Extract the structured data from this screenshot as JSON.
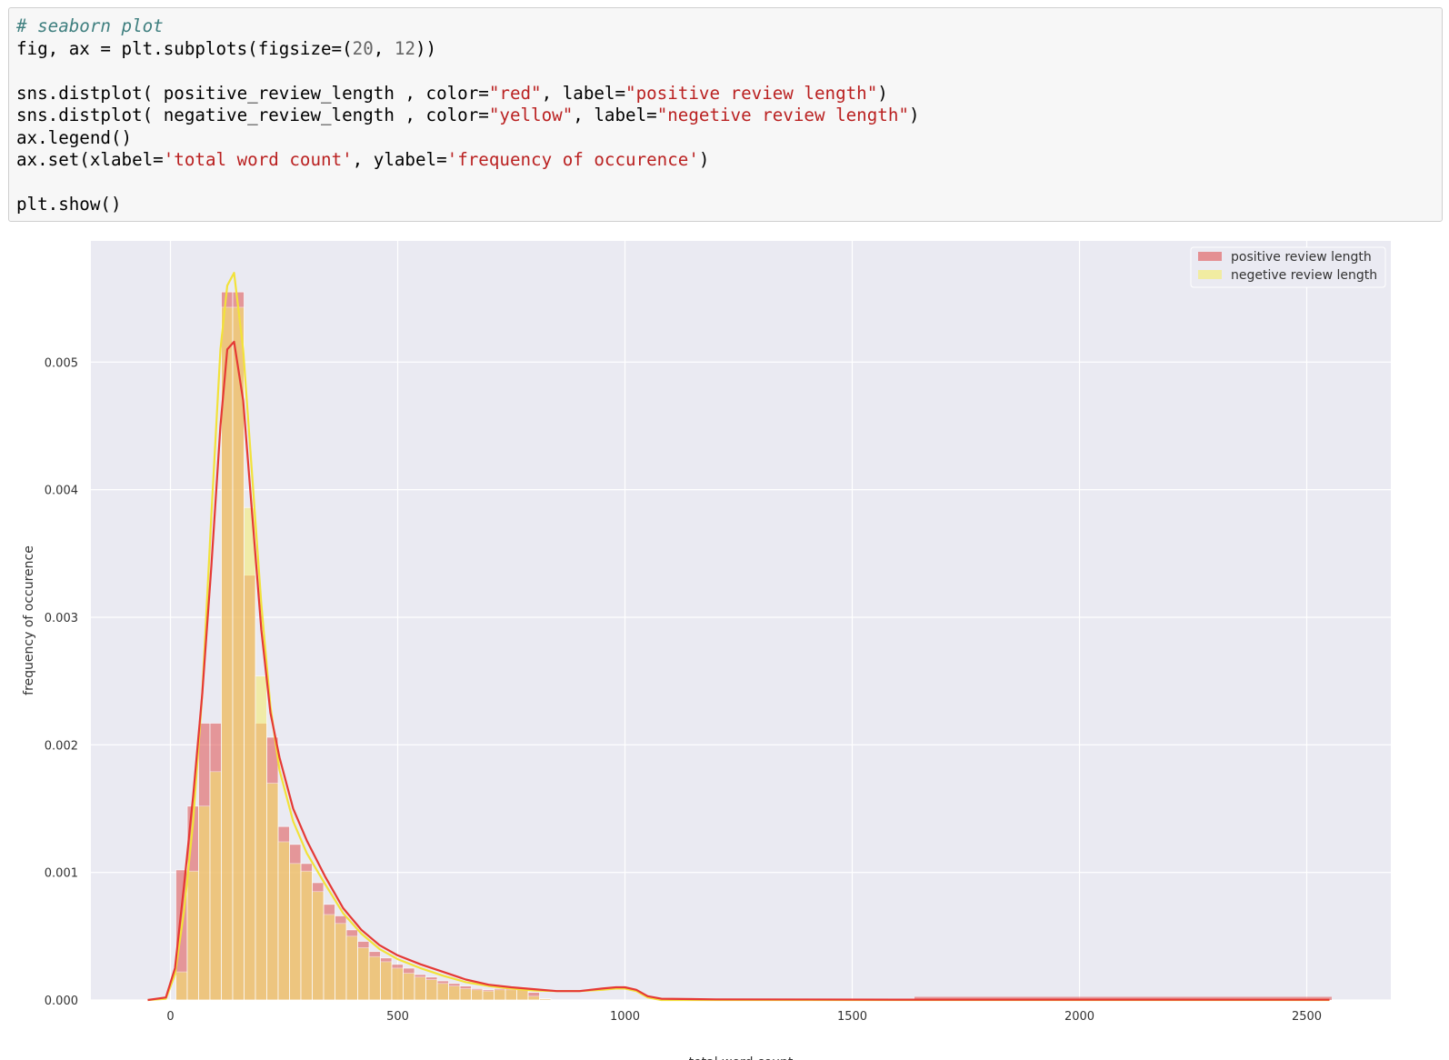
{
  "code_cell": {
    "lines": [
      [
        {
          "t": "# seaborn plot",
          "c": "cm"
        }
      ],
      [
        {
          "t": "fig, ax = plt.subplots(figsize=("
        },
        {
          "t": "20",
          "c": "nm"
        },
        {
          "t": ", "
        },
        {
          "t": "12",
          "c": "nm"
        },
        {
          "t": "))"
        }
      ],
      [],
      [
        {
          "t": "sns.distplot( positive_review_length , color="
        },
        {
          "t": "\"red\"",
          "c": "st"
        },
        {
          "t": ", label="
        },
        {
          "t": "\"positive review length\"",
          "c": "st"
        },
        {
          "t": ")"
        }
      ],
      [
        {
          "t": "sns.distplot( negative_review_length , color="
        },
        {
          "t": "\"yellow\"",
          "c": "st"
        },
        {
          "t": ", label="
        },
        {
          "t": "\"negetive review length\"",
          "c": "st"
        },
        {
          "t": ")"
        }
      ],
      [
        {
          "t": "ax.legend()"
        }
      ],
      [
        {
          "t": "ax.set(xlabel="
        },
        {
          "t": "'total word count'",
          "c": "st"
        },
        {
          "t": ", ylabel="
        },
        {
          "t": "'frequency of occurence'",
          "c": "st"
        },
        {
          "t": ")"
        }
      ],
      [],
      [
        {
          "t": "plt.show()"
        }
      ]
    ]
  },
  "chart_data": {
    "type": "bar",
    "xlabel": "total word count",
    "ylabel": "frequency of occurence",
    "xlim": [
      -175,
      2685
    ],
    "ylim": [
      0,
      0.00595
    ],
    "xticks": [
      0,
      500,
      1000,
      1500,
      2000,
      2500
    ],
    "xtick_labels": [
      "0",
      "500",
      "1000",
      "1500",
      "2000",
      "2500"
    ],
    "yticks": [
      0.0,
      0.001,
      0.002,
      0.003,
      0.004,
      0.005
    ],
    "ytick_labels": [
      "0.000",
      "0.001",
      "0.002",
      "0.003",
      "0.004",
      "0.005"
    ],
    "grid": true,
    "legend_position": "top-right",
    "colors": {
      "background": "#eaeaf2",
      "grid": "#ffffff",
      "positive": "#e05252",
      "negative": "#f5ec6a",
      "positive_kde": "#e53935",
      "negative_kde": "#f2e23a"
    },
    "series": [
      {
        "name": "positive review length",
        "bin_width": 25,
        "bin_start": 12,
        "values": [
          0.00102,
          0.00152,
          0.00217,
          0.00217,
          0.00555,
          0.00555,
          0.00333,
          0.00217,
          0.00206,
          0.00136,
          0.00122,
          0.00107,
          0.00092,
          0.00075,
          0.00066,
          0.00055,
          0.00046,
          0.00038,
          0.00033,
          0.00028,
          0.00025,
          0.0002,
          0.00018,
          0.00015,
          0.00013,
          0.00011,
          9e-05,
          8e-05,
          9e-05,
          0.0001,
          0.0001,
          6e-05,
          1e-05
        ],
        "tail_start": 1637,
        "tail_end": 2555,
        "tail_value": 2.5e-05
      },
      {
        "name": "negetive review length",
        "bin_width": 25,
        "bin_start": 12,
        "values": [
          0.00022,
          0.00101,
          0.00152,
          0.00179,
          0.00543,
          0.00543,
          0.00386,
          0.00254,
          0.0017,
          0.00124,
          0.00107,
          0.00101,
          0.00085,
          0.00067,
          0.0006,
          0.0005,
          0.00041,
          0.00034,
          0.0003,
          0.00025,
          0.00021,
          0.00018,
          0.00016,
          0.00013,
          0.00011,
          9e-05,
          8e-05,
          7e-05,
          8e-05,
          8e-05,
          9e-05,
          3e-05,
          1e-05
        ],
        "tail_start": 0,
        "tail_end": 0,
        "tail_value": 0
      }
    ],
    "kde": [
      {
        "name": "positive review length",
        "x": [
          -50,
          -10,
          10,
          30,
          50,
          70,
          90,
          110,
          125,
          140,
          160,
          180,
          200,
          220,
          240,
          270,
          300,
          340,
          380,
          420,
          460,
          500,
          550,
          600,
          650,
          700,
          750,
          800,
          850,
          900,
          950,
          980,
          1000,
          1025,
          1050,
          1080,
          1200,
          1600,
          2000,
          2550
        ],
        "y": [
          0.0,
          2e-05,
          0.00025,
          0.0009,
          0.0016,
          0.0024,
          0.0034,
          0.0045,
          0.0051,
          0.00516,
          0.0047,
          0.0038,
          0.0029,
          0.00225,
          0.0019,
          0.0015,
          0.00125,
          0.00097,
          0.00072,
          0.00055,
          0.00043,
          0.00035,
          0.00028,
          0.00022,
          0.00016,
          0.00012,
          0.0001,
          8.5e-05,
          7e-05,
          7e-05,
          9e-05,
          0.0001,
          0.0001,
          8e-05,
          3e-05,
          1e-05,
          5e-06,
          3e-06,
          3e-06,
          2e-06
        ]
      },
      {
        "name": "negetive review length",
        "x": [
          -50,
          -10,
          10,
          30,
          50,
          70,
          90,
          110,
          125,
          140,
          160,
          180,
          200,
          220,
          240,
          270,
          300,
          340,
          380,
          420,
          460,
          500,
          550,
          600,
          650,
          700,
          750,
          800,
          850,
          900,
          950,
          980,
          1000,
          1025,
          1050,
          1080,
          1200,
          1600,
          2000,
          2550
        ],
        "y": [
          0.0,
          1e-05,
          0.0002,
          0.0007,
          0.0014,
          0.0024,
          0.0038,
          0.0051,
          0.0056,
          0.0057,
          0.0051,
          0.0041,
          0.0031,
          0.0023,
          0.0018,
          0.0014,
          0.00115,
          0.00091,
          0.00068,
          0.00052,
          0.0004,
          0.00032,
          0.00025,
          0.00019,
          0.00014,
          0.00011,
          9e-05,
          7.5e-05,
          7e-05,
          7e-05,
          8e-05,
          9e-05,
          9e-05,
          7e-05,
          2e-05,
          0.0,
          0.0,
          0.0,
          0.0,
          0.0
        ]
      }
    ],
    "legend": [
      "positive review length",
      "negetive review length"
    ]
  }
}
